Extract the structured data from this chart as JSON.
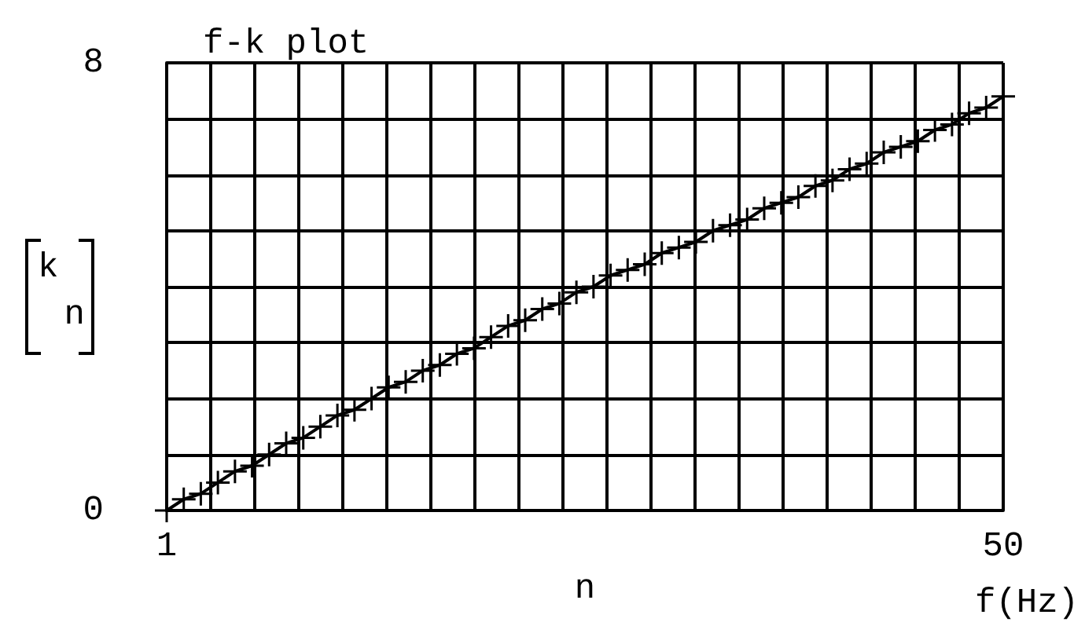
{
  "chart_data": {
    "type": "line",
    "title": "f-k plot",
    "xlabel": "n",
    "ylabel": "k\nn",
    "annotations": [
      "f(Hz)"
    ],
    "x": [
      1,
      2,
      3,
      4,
      5,
      6,
      7,
      8,
      9,
      10,
      11,
      12,
      13,
      14,
      15,
      16,
      17,
      18,
      19,
      20,
      21,
      22,
      23,
      24,
      25,
      26,
      27,
      28,
      29,
      30,
      31,
      32,
      33,
      34,
      35,
      36,
      37,
      38,
      39,
      40,
      41,
      42,
      43,
      44,
      45,
      46,
      47,
      48,
      49,
      50
    ],
    "series": [
      {
        "color": "#000000",
        "values": [
          0,
          0.2,
          0.3,
          0.5,
          0.7,
          0.8,
          1.0,
          1.2,
          1.3,
          1.5,
          1.7,
          1.8,
          2.0,
          2.2,
          2.3,
          2.5,
          2.6,
          2.8,
          2.9,
          3.1,
          3.3,
          3.4,
          3.6,
          3.7,
          3.9,
          4.0,
          4.2,
          4.3,
          4.4,
          4.6,
          4.7,
          4.8,
          5.0,
          5.1,
          5.2,
          5.4,
          5.5,
          5.6,
          5.8,
          5.9,
          6.1,
          6.2,
          6.4,
          6.5,
          6.6,
          6.8,
          6.9,
          7.1,
          7.2,
          7.4
        ]
      }
    ],
    "xlim": [
      1,
      50
    ],
    "xticks": [
      1,
      {
        "value": 3.58,
        "label": null
      },
      {
        "value": 6.16,
        "label": null
      },
      {
        "value": 8.74,
        "label": null
      },
      {
        "value": 11.32,
        "label": null
      },
      {
        "value": 13.89,
        "label": null
      },
      {
        "value": 16.47,
        "label": null
      },
      {
        "value": 19.05,
        "label": null
      },
      {
        "value": 21.63,
        "label": null
      },
      {
        "value": 24.21,
        "label": null
      },
      {
        "value": 26.79,
        "label": null
      },
      {
        "value": 29.37,
        "label": null
      },
      {
        "value": 31.95,
        "label": null
      },
      {
        "value": 34.53,
        "label": null
      },
      {
        "value": 37.11,
        "label": null
      },
      {
        "value": 39.68,
        "label": null
      },
      {
        "value": 42.26,
        "label": null
      },
      {
        "value": 44.84,
        "label": null
      },
      {
        "value": 47.42,
        "label": null
      },
      50
    ],
    "ylim": [
      0,
      8
    ],
    "yticks": [
      0,
      {
        "value": 1,
        "label": null
      },
      {
        "value": 2,
        "label": null
      },
      {
        "value": 3,
        "label": null
      },
      {
        "value": 4,
        "label": null
      },
      {
        "value": 5,
        "label": null
      },
      {
        "value": 6,
        "label": null
      },
      {
        "value": 7,
        "label": null
      },
      8
    ],
    "grid": true,
    "marker": "cross",
    "line_style": "solid"
  }
}
